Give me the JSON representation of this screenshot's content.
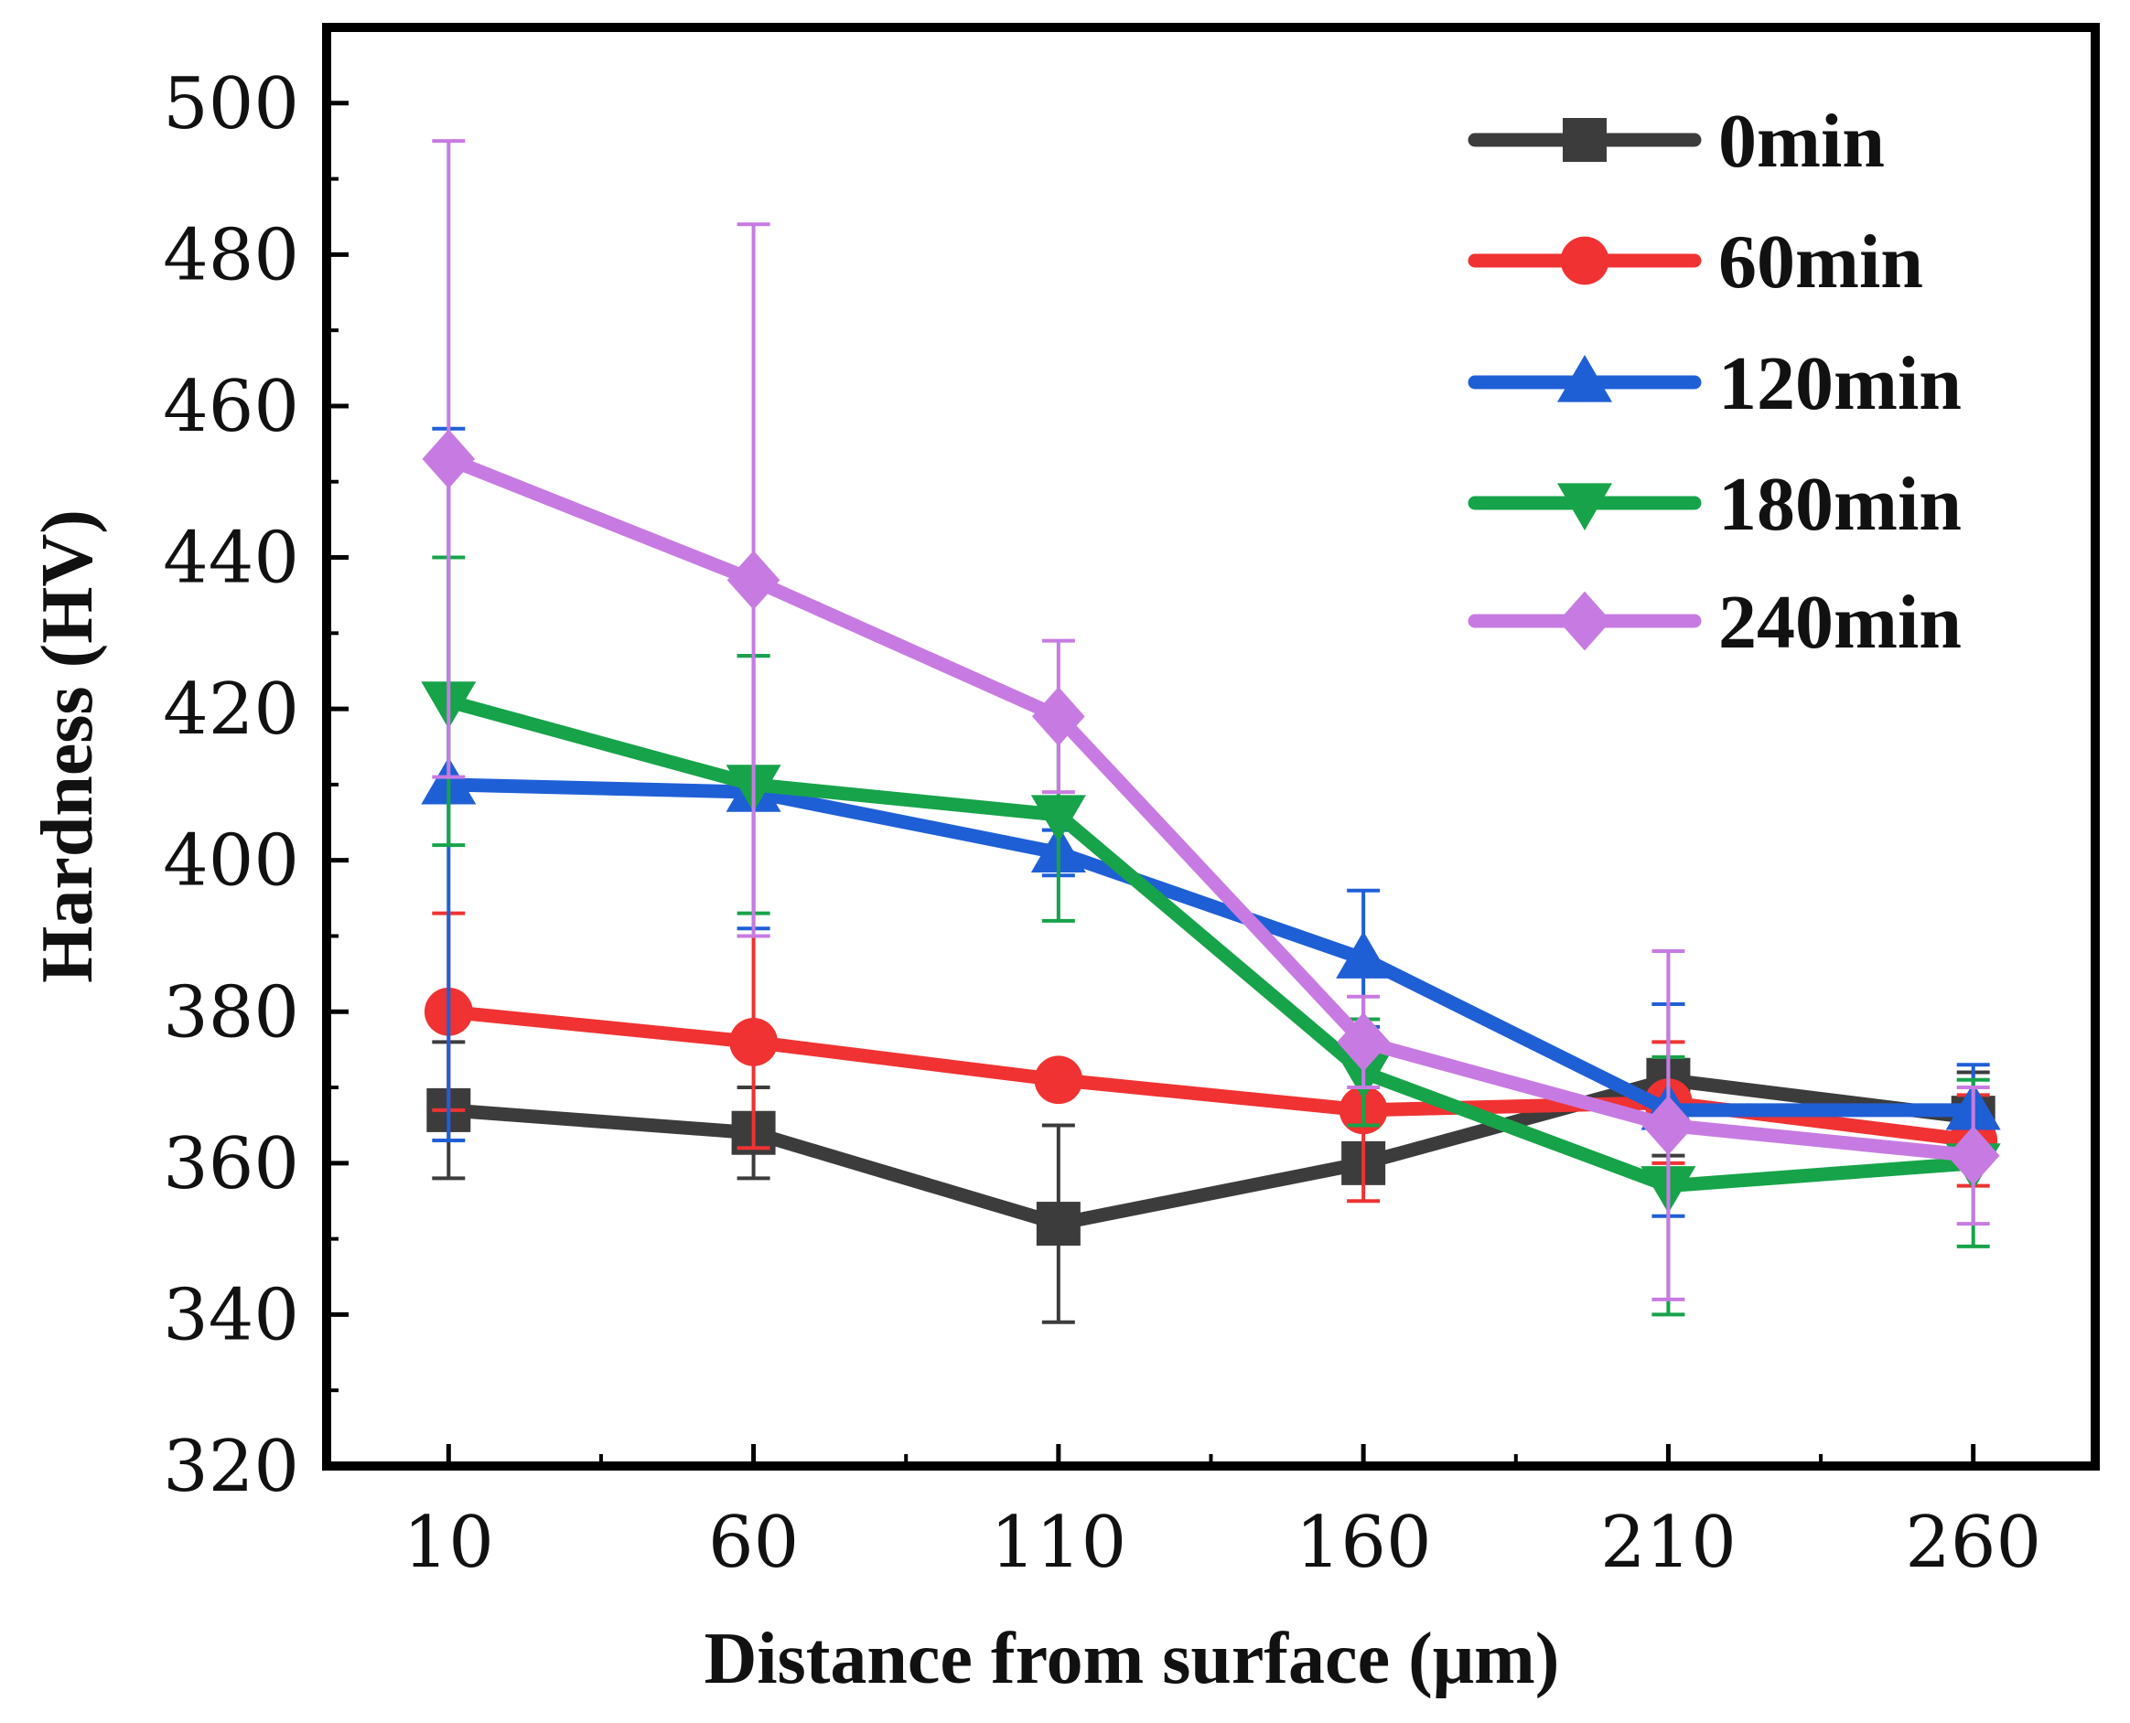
{
  "chart_data": {
    "type": "line",
    "title": "",
    "xlabel": "Distance from surface (μm)",
    "ylabel": "Hardness (HV)",
    "x": [
      10,
      60,
      110,
      160,
      210,
      260
    ],
    "x_tick_labels": [
      "10",
      "60",
      "110",
      "160",
      "210",
      "260"
    ],
    "xlim": [
      -10,
      280
    ],
    "ylim": [
      320,
      510
    ],
    "y_ticks": [
      320,
      340,
      360,
      380,
      400,
      420,
      440,
      460,
      480,
      500
    ],
    "y_tick_labels": [
      "320",
      "340",
      "360",
      "380",
      "400",
      "420",
      "440",
      "460",
      "480",
      "500"
    ],
    "grid": false,
    "legend_position": "top-right",
    "error_bars": true,
    "series": [
      {
        "name": "0min",
        "color": "#3c3c3c",
        "marker": "square",
        "values": [
          367,
          364,
          352,
          360,
          371,
          366
        ],
        "errors": [
          9,
          6,
          13,
          0,
          10,
          6
        ]
      },
      {
        "name": "60min",
        "color": "#f03232",
        "marker": "circle",
        "values": [
          380,
          376,
          371,
          367,
          368,
          363
        ],
        "errors": [
          13,
          14,
          0,
          12,
          8,
          6
        ]
      },
      {
        "name": "120min",
        "color": "#1f5fd6",
        "marker": "triangle-up",
        "values": [
          410,
          409,
          401,
          387,
          367,
          367
        ],
        "errors": [
          47,
          18,
          3,
          9,
          14,
          6
        ]
      },
      {
        "name": "180min",
        "color": "#17a34a",
        "marker": "triangle-down",
        "values": [
          421,
          410,
          406,
          372,
          357,
          360
        ],
        "errors": [
          19,
          17,
          14,
          7,
          17,
          11
        ]
      },
      {
        "name": "240min",
        "color": "#c77be2",
        "marker": "diamond",
        "values": [
          453,
          437,
          419,
          376,
          365,
          361
        ],
        "errors": [
          42,
          47,
          10,
          6,
          23,
          9
        ]
      }
    ]
  }
}
